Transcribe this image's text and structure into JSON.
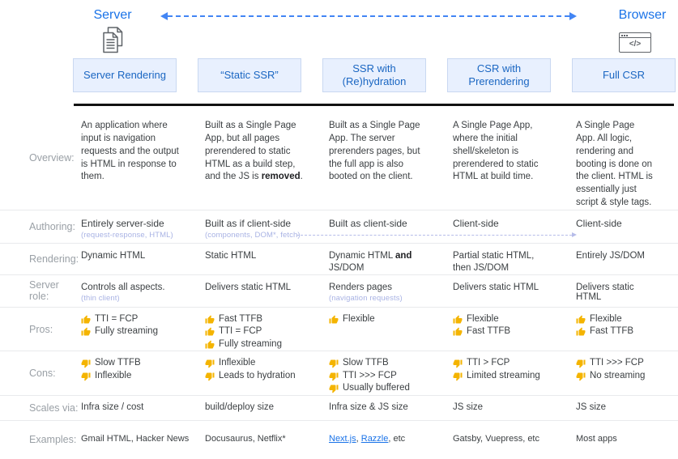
{
  "colors": {
    "accent_blue": "#1a73e8",
    "header_text": "#1a66c2",
    "box_bg": "#e8f0fe",
    "box_border": "#c9d8f1",
    "label_gray": "#9aa0a6",
    "body_text": "#3c4043",
    "bold_text": "#202124",
    "subtext": "#a9b3e4",
    "thumb": "#f4b400",
    "arrow_blue": "#4285f4",
    "authoring_arrow": "#b6bce9",
    "link_blue": "#1a73e8",
    "rule_black": "#121212",
    "separator": "#e9eaec",
    "icon_gray": "#5f6368"
  },
  "top": {
    "server_label": "Server",
    "browser_label": "Browser",
    "browser_icon_glyph": "</>"
  },
  "row_labels": {
    "overview": "Overview:",
    "authoring": "Authoring:",
    "rendering": "Rendering:",
    "server_role": "Server role:",
    "pros": "Pros:",
    "cons": "Cons:",
    "scales": "Scales via:",
    "examples": "Examples:"
  },
  "columns": [
    {
      "header": "Server Rendering",
      "overview": [
        {
          "t": "An application where input is navigation requests and the output is HTML in response to them."
        }
      ],
      "authoring": [
        {
          "t": "Entirely server-side"
        }
      ],
      "authoring_sub": "(request-response, HTML)",
      "rendering": [
        {
          "t": "Dynamic HTML"
        }
      ],
      "server_role": [
        {
          "t": "Controls all aspects."
        }
      ],
      "server_role_sub": "(thin client)",
      "pros": [
        "TTI = FCP",
        "Fully streaming"
      ],
      "cons": [
        "Slow TTFB",
        "Inflexible"
      ],
      "scales": "Infra size / cost",
      "examples": [
        {
          "t": "Gmail HTML, Hacker News"
        }
      ]
    },
    {
      "header": "“Static SSR”",
      "overview": [
        {
          "t": "Built as a Single Page App, but all pages prerendered to static HTML as a build step, and the JS is "
        },
        {
          "t": "removed",
          "b": true
        },
        {
          "t": "."
        }
      ],
      "authoring": [
        {
          "t": "Built as if client-side"
        }
      ],
      "authoring_sub": "(components, DOM*, fetch)",
      "rendering": [
        {
          "t": "Static HTML"
        }
      ],
      "server_role": [
        {
          "t": "Delivers static HTML"
        }
      ],
      "pros": [
        "Fast TTFB",
        "TTI = FCP",
        "Fully streaming"
      ],
      "cons": [
        "Inflexible",
        "Leads to hydration"
      ],
      "scales": "build/deploy size",
      "examples": [
        {
          "t": "Docusaurus, Netflix*"
        }
      ]
    },
    {
      "header": "SSR with (Re)hydration",
      "overview": [
        {
          "t": "Built as a Single Page App. The server prerenders pages, but the full app is also booted on the client."
        }
      ],
      "authoring": [
        {
          "t": "Built as client-side"
        }
      ],
      "rendering": [
        {
          "t": "Dynamic HTML "
        },
        {
          "t": "and",
          "b": true
        },
        {
          "t": " JS/DOM"
        }
      ],
      "server_role": [
        {
          "t": "Renders pages"
        }
      ],
      "server_role_sub": "(navigation requests)",
      "pros": [
        "Flexible"
      ],
      "cons": [
        "Slow TTFB",
        "TTI >>> FCP",
        "Usually buffered"
      ],
      "scales": "Infra size & JS size",
      "examples": [
        {
          "t": "Next.js",
          "link": true
        },
        {
          "t": ", "
        },
        {
          "t": "Razzle",
          "link": true
        },
        {
          "t": ", etc"
        }
      ]
    },
    {
      "header": "CSR with Prerendering",
      "overview": [
        {
          "t": "A Single Page App, where the initial shell/skeleton is prerendered to static HTML at build time."
        }
      ],
      "authoring": [
        {
          "t": "Client-side"
        }
      ],
      "rendering": [
        {
          "t": "Partial static HTML, then JS/DOM"
        }
      ],
      "server_role": [
        {
          "t": "Delivers static HTML"
        }
      ],
      "pros": [
        "Flexible",
        "Fast TTFB"
      ],
      "cons": [
        "TTI > FCP",
        "Limited streaming"
      ],
      "scales": "JS size",
      "examples": [
        {
          "t": "Gatsby, Vuepress, etc"
        }
      ]
    },
    {
      "header": "Full CSR",
      "overview": [
        {
          "t": "A Single Page App. All logic, rendering and booting is done on the client. HTML is essentially just script & style tags."
        }
      ],
      "authoring": [
        {
          "t": "Client-side"
        }
      ],
      "rendering": [
        {
          "t": "Entirely JS/DOM"
        }
      ],
      "server_role": [
        {
          "t": "Delivers static HTML"
        }
      ],
      "pros": [
        "Flexible",
        "Fast TTFB"
      ],
      "cons": [
        "TTI >>> FCP",
        "No streaming"
      ],
      "scales": "JS size",
      "examples": [
        {
          "t": "Most apps"
        }
      ]
    }
  ]
}
